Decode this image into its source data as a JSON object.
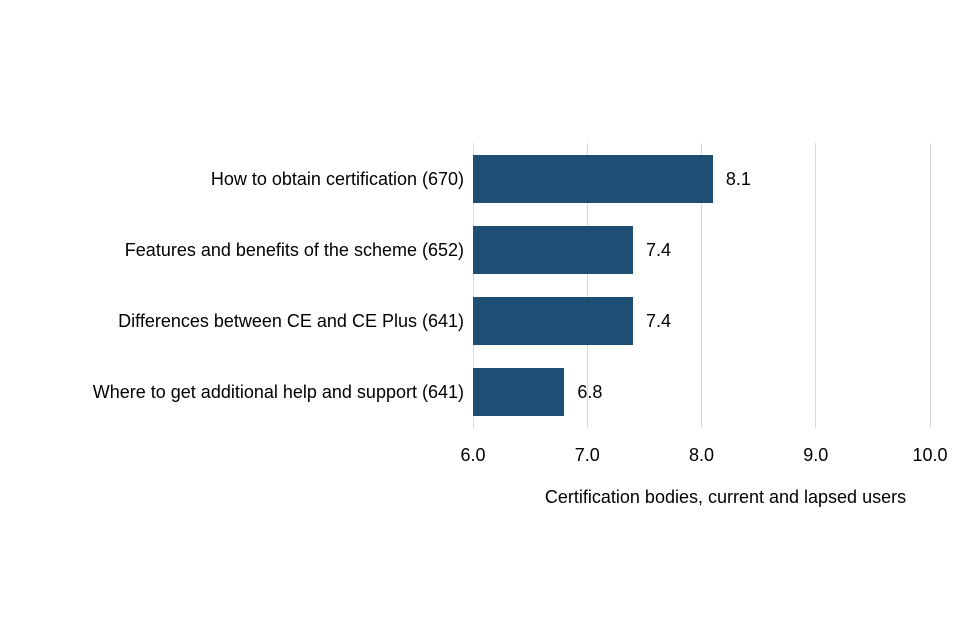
{
  "chart_data": {
    "type": "bar",
    "orientation": "horizontal",
    "title": "",
    "categories": [
      "How to obtain certification (670)",
      "Features and benefits of the scheme (652)",
      "Differences between CE and CE Plus (641)",
      "Where to get additional help and support (641)"
    ],
    "values": [
      8.1,
      7.4,
      7.4,
      6.8
    ],
    "value_labels": [
      "8.1",
      "7.4",
      "7.4",
      "6.8"
    ],
    "xlabel": "Certification bodies, current and lapsed users",
    "xlim": [
      6.0,
      10.0
    ],
    "xticks": [
      {
        "value": 6.0,
        "label": "6.0"
      },
      {
        "value": 7.0,
        "label": "7.0"
      },
      {
        "value": 8.0,
        "label": "8.0"
      },
      {
        "value": 9.0,
        "label": "9.0"
      },
      {
        "value": 10.0,
        "label": "10.0"
      }
    ],
    "grid": true,
    "legend": false,
    "colors": {
      "bar": "#1f4e74",
      "gridline": "#d9d9d9",
      "text": "#000000",
      "background": "#ffffff"
    }
  }
}
